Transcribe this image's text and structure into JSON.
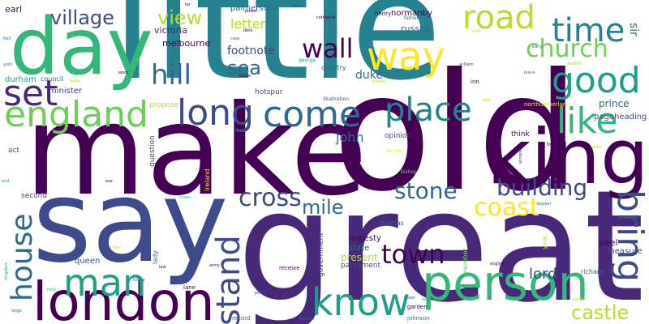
{
  "palette": {
    "dark_purple": "#440154",
    "indigo": "#482878",
    "blue_purple": "#3e4a89",
    "steel_blue": "#31688e",
    "teal_blue": "#26828e",
    "teal": "#1f9e89",
    "green": "#35b779",
    "light_green": "#6ece58",
    "lime": "#b5de2b",
    "yellow": "#fde725"
  },
  "words": [
    {
      "text": "little",
      "color": "#26828e"
    },
    {
      "text": "make",
      "color": "#440154"
    },
    {
      "text": "old",
      "color": "#440154"
    },
    {
      "text": "say",
      "color": "#3e4a89"
    },
    {
      "text": "great",
      "color": "#482878"
    },
    {
      "text": "day",
      "color": "#35b779"
    },
    {
      "text": "king",
      "color": "#440154"
    },
    {
      "text": "london",
      "color": "#440154"
    },
    {
      "text": "person",
      "color": "#35b779"
    },
    {
      "text": "england",
      "color": "#6ece58"
    },
    {
      "text": "time",
      "color": "#26828e"
    },
    {
      "text": "good",
      "color": "#1f9e89"
    },
    {
      "text": "road",
      "color": "#b5de2b"
    },
    {
      "text": "way",
      "color": "#fde725"
    },
    {
      "text": "church",
      "color": "#6ece58"
    },
    {
      "text": "like",
      "color": "#35b779"
    },
    {
      "text": "long",
      "color": "#3e4a89"
    },
    {
      "text": "come",
      "color": "#31688e"
    },
    {
      "text": "place",
      "color": "#26828e"
    },
    {
      "text": "set",
      "color": "#482878"
    },
    {
      "text": "know",
      "color": "#1f9e89"
    },
    {
      "text": "man",
      "color": "#1f9e89"
    },
    {
      "text": "bring",
      "color": "#3e4a89"
    },
    {
      "text": "house",
      "color": "#31688e"
    },
    {
      "text": "stand",
      "color": "#3e4a89"
    },
    {
      "text": "building",
      "color": "#3e4a89"
    },
    {
      "text": "castle",
      "color": "#b5de2b"
    },
    {
      "text": "town",
      "color": "#440154"
    },
    {
      "text": "stone",
      "color": "#31688e"
    },
    {
      "text": "cross",
      "color": "#3e4a89"
    },
    {
      "text": "coast",
      "color": "#fde725"
    },
    {
      "text": "mile",
      "color": "#31688e"
    },
    {
      "text": "hill",
      "color": "#31688e"
    },
    {
      "text": "wall",
      "color": "#440154"
    },
    {
      "text": "village",
      "color": "#3e4a89"
    },
    {
      "text": "view",
      "color": "#b5de2b"
    },
    {
      "text": "sea",
      "color": "#31688e"
    },
    {
      "text": "lord",
      "color": "#3e4a89"
    },
    {
      "text": "john",
      "color": "#31688e"
    },
    {
      "text": "duke",
      "color": "#31688e"
    },
    {
      "text": "footnote",
      "color": "#3e4a89"
    },
    {
      "text": "letter",
      "color": "#b5de2b"
    },
    {
      "text": "victoria",
      "color": "#482878"
    },
    {
      "text": "melbourne",
      "color": "#440154"
    },
    {
      "text": "palmerston",
      "color": "#31688e"
    },
    {
      "text": "russell",
      "color": "#31688e"
    },
    {
      "text": "normanby",
      "color": "#440154"
    },
    {
      "text": "prince",
      "color": "#31688e"
    },
    {
      "text": "sir",
      "color": "#31688e"
    },
    {
      "text": "peel",
      "color": "#440154"
    },
    {
      "text": "pageheading",
      "color": "#3e4a89"
    },
    {
      "text": "measure",
      "color": "#3e4a89"
    },
    {
      "text": "present",
      "color": "#b5de2b"
    },
    {
      "text": "majesty",
      "color": "#440154"
    },
    {
      "text": "state",
      "color": "#31688e"
    },
    {
      "text": "government",
      "color": "#3e4a89"
    },
    {
      "text": "queen",
      "color": "#3e4a89"
    },
    {
      "text": "parliament",
      "color": "#3e4a89"
    },
    {
      "text": "earl",
      "color": "#440154"
    },
    {
      "text": "durham",
      "color": "#1f9e89"
    },
    {
      "text": "minister",
      "color": "#3e4a89"
    },
    {
      "text": "council",
      "color": "#31688e"
    },
    {
      "text": "opinion",
      "color": "#3e4a89"
    },
    {
      "text": "question",
      "color": "#3e4a89"
    },
    {
      "text": "hotspur",
      "color": "#3e4a89"
    },
    {
      "text": "propose",
      "color": "#b5de2b"
    },
    {
      "text": "thomas",
      "color": "#31688e"
    },
    {
      "text": "second",
      "color": "#3e4a89"
    },
    {
      "text": "act",
      "color": "#3e4a89"
    },
    {
      "text": "think",
      "color": "#440154"
    },
    {
      "text": "richard",
      "color": "#31688e"
    },
    {
      "text": "member",
      "color": "#6ece58"
    },
    {
      "text": "year",
      "color": "#b5de2b"
    },
    {
      "text": "lady",
      "color": "#31688e"
    },
    {
      "text": "ireland",
      "color": "#fde725"
    },
    {
      "text": "country",
      "color": "#31688e"
    },
    {
      "text": "henry",
      "color": "#440154"
    },
    {
      "text": "illustration",
      "color": "#3e4a89"
    },
    {
      "text": "northumberland",
      "color": "#fde725"
    },
    {
      "text": "garden",
      "color": "#440154"
    },
    {
      "text": "johnson",
      "color": "#31688e"
    },
    {
      "text": "receive",
      "color": "#440154"
    },
    {
      "text": "lane",
      "color": "#440154"
    },
    {
      "text": "record",
      "color": "#31688e"
    },
    {
      "text": "cathedral",
      "color": "#440154"
    },
    {
      "text": "father",
      "color": "#31688e"
    },
    {
      "text": "son",
      "color": "#b5de2b"
    },
    {
      "text": "george",
      "color": "#1f9e89"
    },
    {
      "text": "william",
      "color": "#3e4a89"
    },
    {
      "text": "inn",
      "color": "#440154"
    },
    {
      "text": "street",
      "color": "#b5de2b"
    },
    {
      "text": "tavern",
      "color": "#fde725"
    },
    {
      "text": "bishop",
      "color": "#6ece58"
    },
    {
      "text": "club",
      "color": "#b5de2b"
    },
    {
      "text": "build",
      "color": "#440154"
    },
    {
      "text": "english",
      "color": "#440154"
    },
    {
      "text": "wales",
      "color": "#b5de2b"
    },
    {
      "text": "leave",
      "color": "#31688e"
    },
    {
      "text": "power",
      "color": "#440154"
    },
    {
      "text": "order",
      "color": "#3e4a89"
    },
    {
      "text": "date",
      "color": "#440154"
    },
    {
      "text": "case",
      "color": "#31688e"
    },
    {
      "text": "house",
      "color": "#440154"
    },
    {
      "text": "fact",
      "color": "#31688e"
    },
    {
      "text": "york",
      "color": "#31688e"
    },
    {
      "text": "away",
      "color": "#b5de2b"
    },
    {
      "text": "work",
      "color": "#440154"
    },
    {
      "text": "far",
      "color": "#440154"
    },
    {
      "text": "point",
      "color": "#3e4a89"
    },
    {
      "text": "south",
      "color": "#1f9e89"
    },
    {
      "text": "tower",
      "color": "#31688e"
    },
    {
      "text": "conduct",
      "color": "#31688e"
    },
    {
      "text": "kingdom",
      "color": "#1f9e89"
    },
    {
      "text": "large",
      "color": "#31688e"
    },
    {
      "text": "hold",
      "color": "#35b779"
    },
    {
      "text": "follow",
      "color": "#31688e"
    },
    {
      "text": "army",
      "color": "#440154"
    },
    {
      "text": "end",
      "color": "#1f9e89"
    },
    {
      "text": "crown",
      "color": "#35b779"
    },
    {
      "text": "war",
      "color": "#440154"
    },
    {
      "text": "north",
      "color": "#b5de2b"
    },
    {
      "text": "appear",
      "color": "#31688e"
    },
    {
      "text": "window",
      "color": "#3e4a89"
    },
    {
      "text": "youth",
      "color": "#b5de2b"
    },
    {
      "text": "law",
      "color": "#440154"
    },
    {
      "text": "chair",
      "color": "#b5de2b"
    },
    {
      "text": "early",
      "color": "#31688e"
    }
  ]
}
